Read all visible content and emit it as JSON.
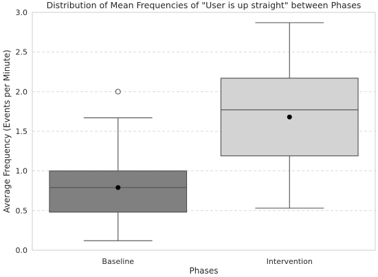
{
  "chart_data": {
    "type": "box",
    "title": "Distribution of Mean Frequencies of \"User is up straight\" between Phases",
    "xlabel": "Phases",
    "ylabel": "Average Frequency (Events per Minute)",
    "ylim": [
      0.0,
      3.0
    ],
    "yticks": [
      "0.0",
      "0.5",
      "1.0",
      "1.5",
      "2.0",
      "2.5",
      "3.0"
    ],
    "grid": "horizontal dashed",
    "categories": [
      "Baseline",
      "Intervention"
    ],
    "boxes": [
      {
        "category": "Baseline",
        "whisker_low": 0.12,
        "q1": 0.48,
        "median": 0.79,
        "q3": 1.0,
        "whisker_high": 1.67,
        "mean": 0.79,
        "outliers": [
          2.0
        ],
        "color": "#808080"
      },
      {
        "category": "Intervention",
        "whisker_low": 0.53,
        "q1": 1.19,
        "median": 1.77,
        "q3": 2.17,
        "whisker_high": 2.87,
        "mean": 1.68,
        "outliers": [],
        "color": "#d3d3d3"
      }
    ]
  }
}
